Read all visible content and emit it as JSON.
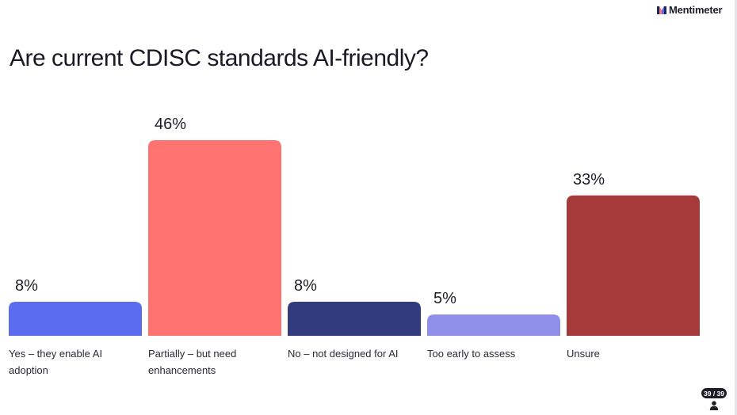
{
  "header": {
    "brand": "Mentimeter"
  },
  "question": {
    "title": "Are current CDISC standards AI-friendly?"
  },
  "footer": {
    "slide_counter": "39 / 39",
    "participant_icon": "person-icon"
  },
  "chart_data": {
    "type": "bar",
    "title": "Are current CDISC standards AI-friendly?",
    "categories": [
      "Yes – they enable AI adoption",
      "Partially – but need enhancements",
      "No – not designed for AI",
      "Too early to assess",
      "Unsure"
    ],
    "values": [
      8,
      46,
      8,
      5,
      33
    ],
    "value_labels": [
      "8%",
      "46%",
      "8%",
      "5%",
      "33%"
    ],
    "unit": "%",
    "colors": [
      "#5b6cf0",
      "#ff7470",
      "#313b7e",
      "#8f8fea",
      "#a63a3a"
    ],
    "ylim": [
      0,
      46
    ],
    "grid": false,
    "legend": "none"
  }
}
